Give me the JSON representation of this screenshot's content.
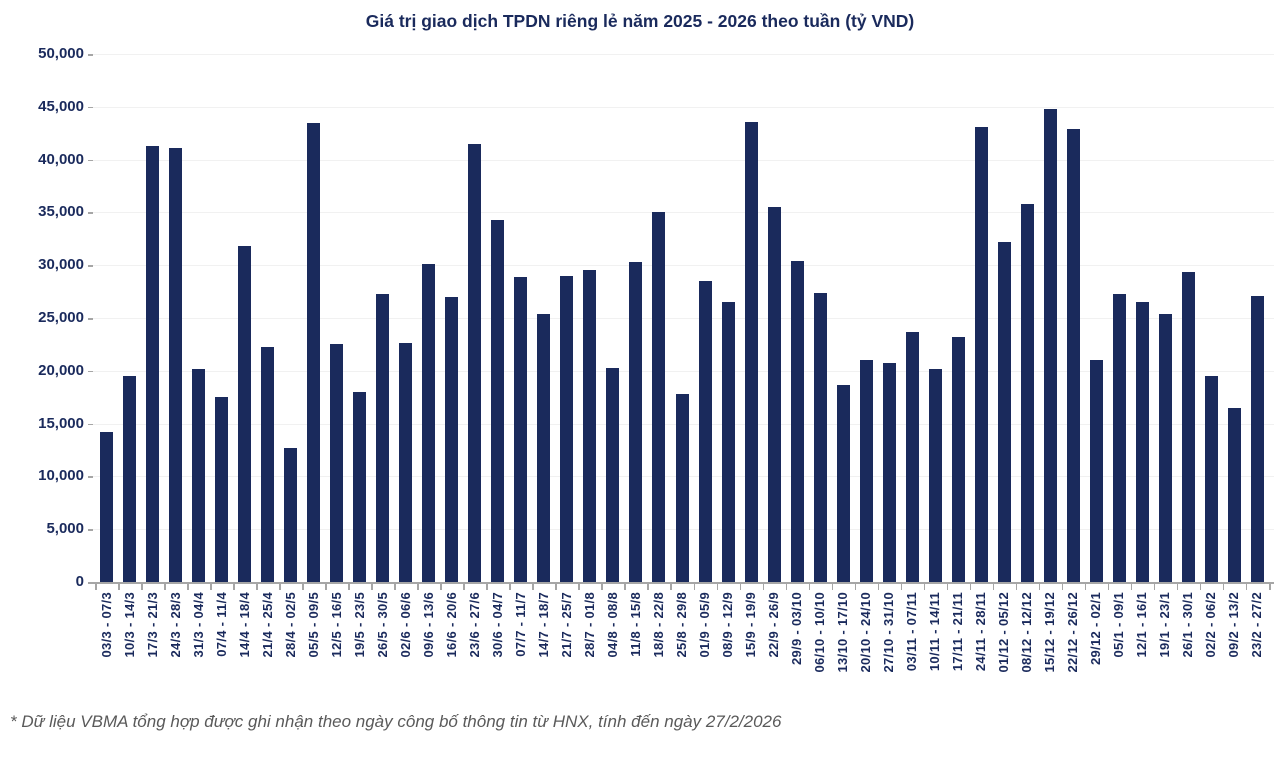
{
  "title": "Giá trị giao dịch TPDN riêng lẻ năm 2025 - 2026 theo tuần (tỷ VND)",
  "footer": {
    "note": "* Dữ liệu VBMA tổng hợp được ghi nhận theo ngày công bố thông tin từ HNX, tính đến ngày 27/2/2026"
  },
  "colors": {
    "bar": "#1a2a5c",
    "text": "#1a2a5c",
    "gridline": "#f1f1f1",
    "axis": "#a6a6a6",
    "footer_text": "#5a5a5a"
  },
  "y_axis": {
    "ticks": [
      {
        "label": "0",
        "value": 0
      },
      {
        "label": "5,000",
        "value": 5000
      },
      {
        "label": "10,000",
        "value": 10000
      },
      {
        "label": "15,000",
        "value": 15000
      },
      {
        "label": "20,000",
        "value": 20000
      },
      {
        "label": "25,000",
        "value": 25000
      },
      {
        "label": "30,000",
        "value": 30000
      },
      {
        "label": "35,000",
        "value": 35000
      },
      {
        "label": "40,000",
        "value": 40000
      },
      {
        "label": "45,000",
        "value": 45000
      },
      {
        "label": "50,000",
        "value": 50000
      }
    ]
  },
  "chart_data": {
    "type": "bar",
    "title": "Giá trị giao dịch TPDN riêng lẻ năm 2025 - 2026 theo tuần (tỷ VND)",
    "xlabel": "",
    "ylabel": "tỷ VND",
    "ylim": [
      0,
      50000
    ],
    "grid": true,
    "legend_position": "none",
    "categories": [
      "03/3 - 07/3",
      "10/3 - 14/3",
      "17/3 - 21/3",
      "24/3 - 28/3",
      "31/3 - 04/4",
      "07/4 - 11/4",
      "14/4 - 18/4",
      "21/4 - 25/4",
      "28/4 - 02/5",
      "05/5 - 09/5",
      "12/5 - 16/5",
      "19/5 - 23/5",
      "26/5 - 30/5",
      "02/6 - 06/6",
      "09/6 - 13/6",
      "16/6 - 20/6",
      "23/6 - 27/6",
      "30/6 - 04/7",
      "07/7 - 11/7",
      "14/7 - 18/7",
      "21/7 - 25/7",
      "28/7 - 01/8",
      "04/8 - 08/8",
      "11/8 - 15/8",
      "18/8 - 22/8",
      "25/8 - 29/8",
      "01/9 - 05/9",
      "08/9 - 12/9",
      "15/9 - 19/9",
      "22/9 - 26/9",
      "29/9 - 03/10",
      "06/10 - 10/10",
      "13/10 - 17/10",
      "20/10 - 24/10",
      "27/10 - 31/10",
      "03/11 - 07/11",
      "10/11 - 14/11",
      "17/11 - 21/11",
      "24/11 - 28/11",
      "01/12 - 05/12",
      "08/12 - 12/12",
      "15/12 - 19/12",
      "22/12 - 26/12",
      "29/12 - 02/1",
      "05/1 - 09/1",
      "12/1 - 16/1",
      "19/1 - 23/1",
      "26/1 - 30/1",
      "02/2 - 06/2",
      "09/2 - 13/2",
      "23/2 - 27/2"
    ],
    "values": [
      14200,
      19500,
      41300,
      41100,
      20200,
      17500,
      31800,
      22300,
      12700,
      43500,
      22500,
      18000,
      27300,
      22600,
      30100,
      27000,
      41500,
      34300,
      28900,
      25400,
      29000,
      29500,
      20300,
      30300,
      35000,
      17800,
      28500,
      26500,
      43600,
      35500,
      30400,
      27400,
      18700,
      21000,
      20700,
      23700,
      20200,
      23200,
      43100,
      32200,
      35800,
      44800,
      42900,
      21000,
      27300,
      26500,
      25400,
      29400,
      19500,
      16500,
      27100
    ]
  }
}
